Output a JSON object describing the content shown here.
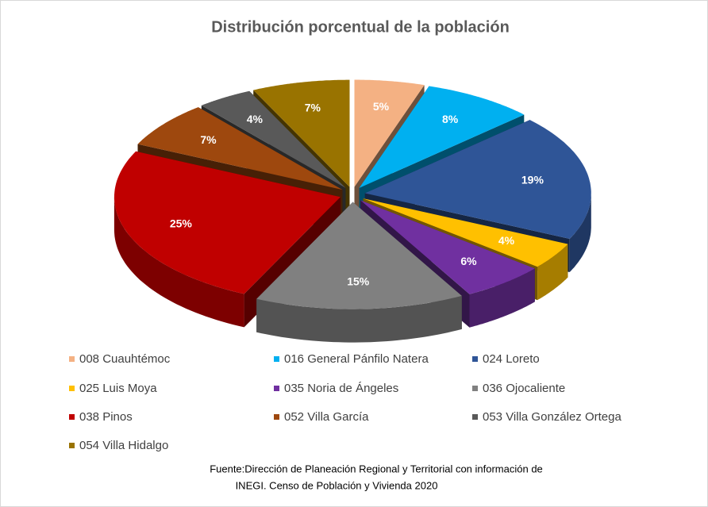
{
  "chart_data": {
    "type": "pie3d",
    "title": "Distribución porcentual de la población",
    "categories": [
      "008 Cuauhtémoc",
      "016 General Pánfilo Natera",
      "024 Loreto",
      "025 Luis Moya",
      "035 Noria de Ángeles",
      "036 Ojocaliente",
      "038 Pinos",
      "052 Villa García",
      "053 Villa González Ortega",
      "054 Villa Hidalgo"
    ],
    "values": [
      5,
      8,
      19,
      4,
      6,
      15,
      25,
      7,
      4,
      7
    ],
    "value_labels": [
      "5%",
      "8%",
      "19%",
      "4%",
      "6%",
      "15%",
      "25%",
      "7%",
      "4%",
      "7%"
    ],
    "colors": [
      "#f4b183",
      "#00b0f0",
      "#2f5597",
      "#ffc000",
      "#7030a0",
      "#808080",
      "#c00000",
      "#9e480e",
      "#595959",
      "#997300"
    ],
    "legend": "bottom",
    "source": [
      "Fuente:Dirección de Planeación Regional y Territorial con información de",
      "INEGI. Censo de Población y Vivienda 2020"
    ]
  }
}
